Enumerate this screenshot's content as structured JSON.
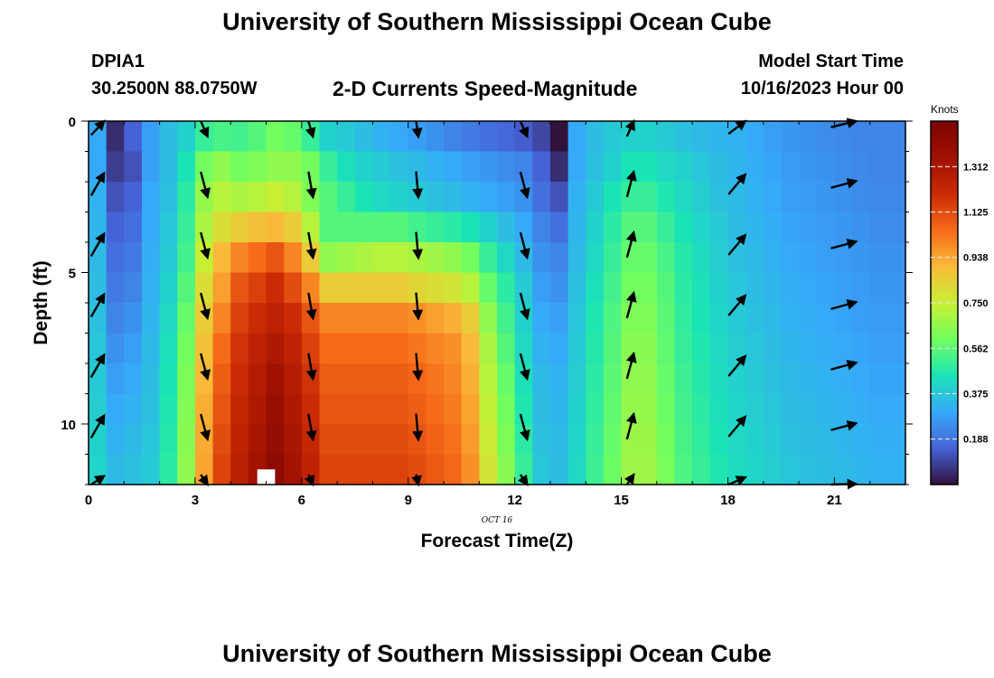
{
  "header": {
    "title": "University of Southern Mississippi Ocean Cube",
    "station": "DPIA1",
    "coords": "30.2500N  88.0750W",
    "subtitle": "2-D Currents Speed-Magnitude",
    "model_start_label": "Model Start Time",
    "model_start_value": "10/16/2023 Hour 00",
    "footer_title": "University of Southern Mississippi Ocean Cube"
  },
  "chart_data": {
    "type": "heatmap",
    "title": "2-D Currents Speed-Magnitude",
    "xlabel": "Forecast Time(Z)",
    "ylabel": "Depth (ft)",
    "date_label": "OCT 16",
    "x_ticks": [
      0,
      3,
      6,
      9,
      12,
      15,
      18,
      21
    ],
    "y_ticks": [
      0,
      5,
      10
    ],
    "xlim": [
      0,
      23
    ],
    "ylim": [
      0,
      12
    ],
    "y_inverted": true,
    "colorbar": {
      "label": "Knots",
      "min": 0,
      "max": 1.5,
      "ticks": [
        "1.312",
        "1.125",
        "0.938",
        "0.750",
        "0.562",
        "0.375",
        "0.188"
      ]
    },
    "x_bins": [
      0,
      0.5,
      1,
      1.5,
      2,
      2.5,
      3,
      3.5,
      4,
      4.5,
      5,
      5.5,
      6,
      6.5,
      7,
      7.5,
      8,
      8.5,
      9,
      9.5,
      10,
      10.5,
      11,
      11.5,
      12,
      12.5,
      13,
      13.5,
      14,
      14.5,
      15,
      15.5,
      16,
      16.5,
      17,
      17.5,
      18,
      18.5,
      19,
      19.5,
      20,
      20.5,
      21,
      21.5,
      22,
      22.5
    ],
    "depth_rows": [
      0,
      1,
      2,
      3,
      4,
      5,
      6,
      7,
      8,
      9,
      10,
      11
    ],
    "speed_knots": [
      [
        0.3,
        0.05,
        0.15,
        0.28,
        0.35,
        0.4,
        0.5,
        0.53,
        0.52,
        0.55,
        0.6,
        0.58,
        0.5,
        0.4,
        0.38,
        0.35,
        0.32,
        0.3,
        0.28,
        0.25,
        0.22,
        0.2,
        0.18,
        0.16,
        0.14,
        0.1,
        0.0,
        0.3,
        0.35,
        0.38,
        0.4,
        0.4,
        0.38,
        0.36,
        0.34,
        0.33,
        0.32,
        0.3,
        0.28,
        0.26,
        0.25,
        0.24,
        0.23,
        0.22,
        0.22,
        0.22
      ],
      [
        0.3,
        0.08,
        0.12,
        0.28,
        0.35,
        0.45,
        0.6,
        0.65,
        0.6,
        0.62,
        0.65,
        0.65,
        0.6,
        0.5,
        0.44,
        0.4,
        0.38,
        0.36,
        0.34,
        0.32,
        0.3,
        0.28,
        0.26,
        0.24,
        0.22,
        0.15,
        0.05,
        0.3,
        0.36,
        0.4,
        0.45,
        0.45,
        0.42,
        0.4,
        0.37,
        0.35,
        0.33,
        0.31,
        0.29,
        0.27,
        0.26,
        0.25,
        0.24,
        0.23,
        0.22,
        0.22
      ],
      [
        0.32,
        0.12,
        0.15,
        0.3,
        0.36,
        0.48,
        0.66,
        0.72,
        0.7,
        0.72,
        0.75,
        0.72,
        0.62,
        0.55,
        0.5,
        0.45,
        0.42,
        0.4,
        0.38,
        0.36,
        0.34,
        0.32,
        0.3,
        0.28,
        0.25,
        0.18,
        0.12,
        0.32,
        0.38,
        0.45,
        0.5,
        0.5,
        0.46,
        0.42,
        0.39,
        0.36,
        0.34,
        0.32,
        0.3,
        0.28,
        0.27,
        0.26,
        0.25,
        0.24,
        0.23,
        0.23
      ],
      [
        0.33,
        0.15,
        0.18,
        0.3,
        0.37,
        0.5,
        0.7,
        0.8,
        0.85,
        0.88,
        0.9,
        0.85,
        0.72,
        0.55,
        0.55,
        0.55,
        0.55,
        0.55,
        0.52,
        0.5,
        0.48,
        0.45,
        0.4,
        0.35,
        0.3,
        0.22,
        0.18,
        0.33,
        0.4,
        0.48,
        0.55,
        0.55,
        0.5,
        0.45,
        0.41,
        0.38,
        0.35,
        0.33,
        0.31,
        0.29,
        0.28,
        0.27,
        0.26,
        0.25,
        0.24,
        0.24
      ],
      [
        0.34,
        0.18,
        0.2,
        0.31,
        0.38,
        0.52,
        0.75,
        0.9,
        1.0,
        1.05,
        1.1,
        1.0,
        0.85,
        0.65,
        0.68,
        0.7,
        0.72,
        0.72,
        0.7,
        0.68,
        0.65,
        0.6,
        0.5,
        0.42,
        0.34,
        0.25,
        0.22,
        0.34,
        0.42,
        0.5,
        0.58,
        0.58,
        0.53,
        0.47,
        0.43,
        0.39,
        0.36,
        0.34,
        0.32,
        0.3,
        0.29,
        0.28,
        0.27,
        0.26,
        0.25,
        0.25
      ],
      [
        0.35,
        0.2,
        0.22,
        0.32,
        0.4,
        0.55,
        0.8,
        0.95,
        1.1,
        1.15,
        1.2,
        1.12,
        1.0,
        0.85,
        0.85,
        0.85,
        0.85,
        0.85,
        0.82,
        0.8,
        0.78,
        0.72,
        0.58,
        0.48,
        0.38,
        0.28,
        0.25,
        0.36,
        0.44,
        0.52,
        0.6,
        0.6,
        0.55,
        0.48,
        0.44,
        0.4,
        0.37,
        0.35,
        0.33,
        0.31,
        0.3,
        0.29,
        0.28,
        0.27,
        0.26,
        0.26
      ],
      [
        0.36,
        0.22,
        0.25,
        0.33,
        0.42,
        0.58,
        0.85,
        1.0,
        1.15,
        1.2,
        1.25,
        1.2,
        1.1,
        1.0,
        1.0,
        1.0,
        1.0,
        1.0,
        0.98,
        0.95,
        0.92,
        0.85,
        0.65,
        0.52,
        0.4,
        0.3,
        0.28,
        0.37,
        0.46,
        0.54,
        0.62,
        0.62,
        0.56,
        0.49,
        0.45,
        0.41,
        0.38,
        0.36,
        0.34,
        0.32,
        0.31,
        0.3,
        0.29,
        0.28,
        0.27,
        0.27
      ],
      [
        0.37,
        0.25,
        0.28,
        0.34,
        0.44,
        0.6,
        0.88,
        1.05,
        1.18,
        1.25,
        1.3,
        1.25,
        1.15,
        1.05,
        1.05,
        1.05,
        1.05,
        1.05,
        1.03,
        1.0,
        0.98,
        0.9,
        0.7,
        0.55,
        0.42,
        0.32,
        0.3,
        0.38,
        0.47,
        0.55,
        0.64,
        0.64,
        0.57,
        0.5,
        0.46,
        0.42,
        0.39,
        0.37,
        0.35,
        0.33,
        0.32,
        0.31,
        0.3,
        0.29,
        0.28,
        0.28
      ],
      [
        0.38,
        0.28,
        0.3,
        0.35,
        0.45,
        0.62,
        0.9,
        1.08,
        1.2,
        1.28,
        1.35,
        1.28,
        1.18,
        1.08,
        1.08,
        1.08,
        1.08,
        1.08,
        1.06,
        1.03,
        1.0,
        0.92,
        0.72,
        0.58,
        0.44,
        0.34,
        0.32,
        0.39,
        0.48,
        0.56,
        0.65,
        0.65,
        0.58,
        0.51,
        0.47,
        0.43,
        0.4,
        0.38,
        0.36,
        0.34,
        0.33,
        0.32,
        0.31,
        0.3,
        0.29,
        0.29
      ],
      [
        0.39,
        0.3,
        0.32,
        0.36,
        0.46,
        0.63,
        0.92,
        1.1,
        1.22,
        1.3,
        1.38,
        1.3,
        1.2,
        1.1,
        1.1,
        1.1,
        1.1,
        1.1,
        1.08,
        1.05,
        1.02,
        0.94,
        0.74,
        0.6,
        0.46,
        0.35,
        0.33,
        0.4,
        0.49,
        0.57,
        0.66,
        0.66,
        0.59,
        0.52,
        0.48,
        0.44,
        0.41,
        0.39,
        0.37,
        0.35,
        0.34,
        0.33,
        0.32,
        0.31,
        0.3,
        0.3
      ],
      [
        0.4,
        0.32,
        0.34,
        0.37,
        0.47,
        0.64,
        0.93,
        1.12,
        1.24,
        1.32,
        1.4,
        1.32,
        1.22,
        1.12,
        1.12,
        1.12,
        1.12,
        1.12,
        1.1,
        1.07,
        1.04,
        0.96,
        0.76,
        0.62,
        0.48,
        0.36,
        0.34,
        0.41,
        0.5,
        0.58,
        0.67,
        0.67,
        0.6,
        0.53,
        0.49,
        0.45,
        0.42,
        0.4,
        0.38,
        0.36,
        0.35,
        0.34,
        0.33,
        0.32,
        0.31,
        0.31
      ],
      [
        0.41,
        0.34,
        0.36,
        0.38,
        0.48,
        0.65,
        0.94,
        1.14,
        1.26,
        1.34,
        1.42,
        1.34,
        1.24,
        1.14,
        1.14,
        1.14,
        1.14,
        1.14,
        1.12,
        1.09,
        1.06,
        0.98,
        0.78,
        0.64,
        0.5,
        0.37,
        0.35,
        0.42,
        0.51,
        0.59,
        0.68,
        0.68,
        0.61,
        0.54,
        0.5,
        0.46,
        0.43,
        0.41,
        0.39,
        0.37,
        0.36,
        0.35,
        0.34,
        0.33,
        0.32,
        0.32
      ]
    ],
    "missing_cells": [
      {
        "x": 5,
        "depth": 11.5
      }
    ],
    "vectors": {
      "x": [
        0,
        3,
        6,
        9,
        12,
        15,
        18,
        21
      ],
      "depths": [
        0,
        2,
        4,
        6,
        8,
        10,
        12
      ],
      "angle_deg_from_north": [
        30,
        165,
        170,
        175,
        165,
        15,
        40,
        75
      ],
      "length_rel": [
        0.9,
        0.9,
        0.9,
        0.9,
        0.9,
        0.9,
        0.9,
        0.9
      ]
    }
  }
}
